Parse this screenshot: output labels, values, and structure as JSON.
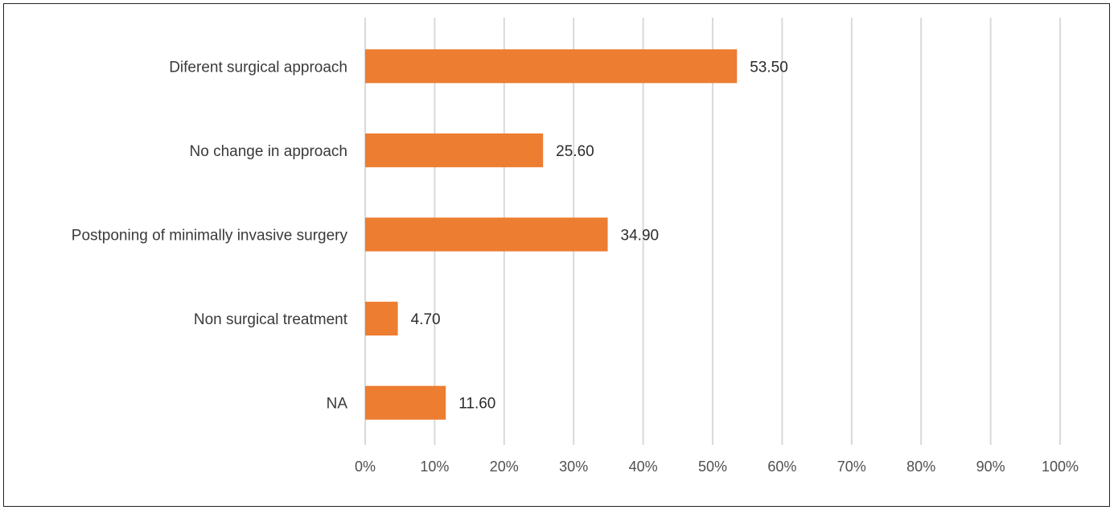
{
  "chart_data": {
    "type": "bar",
    "orientation": "horizontal",
    "categories": [
      "Diferent surgical approach",
      "No change in approach",
      "Postponing of minimally invasive surgery",
      "Non surgical treatment",
      "NA"
    ],
    "values": [
      53.5,
      25.6,
      34.9,
      4.7,
      11.6
    ],
    "value_labels": [
      "53.50",
      "25.60",
      "34.90",
      "4.70",
      "11.60"
    ],
    "x_ticks": [
      "0%",
      "10%",
      "20%",
      "30%",
      "40%",
      "50%",
      "60%",
      "70%",
      "80%",
      "90%",
      "100%"
    ],
    "xlim": [
      0,
      100
    ],
    "grid": "vertical",
    "bar_color": "#ed7d31",
    "grid_color": "#d9d9d9",
    "title": "",
    "xlabel": "",
    "ylabel": ""
  }
}
